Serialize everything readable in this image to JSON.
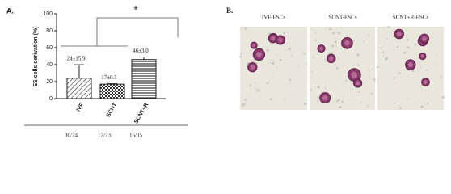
{
  "chart_data": {
    "type": "bar",
    "panel_label": "A.",
    "ylabel": "ES cells derivation (%)",
    "categories": [
      "IVF",
      "SCNT",
      "SCNT+R"
    ],
    "values": [
      24,
      17,
      46
    ],
    "errors": [
      15.9,
      0.5,
      3.0
    ],
    "value_labels": [
      "24±15.9",
      "17±0.5",
      "46±3.0"
    ],
    "sample_counts": [
      "30/74",
      "12/73",
      "16/35"
    ],
    "significance": "*",
    "ylim": [
      0,
      100
    ],
    "yticks": [
      0,
      20,
      40,
      60,
      80,
      100
    ],
    "color": "#222222"
  },
  "panel_b": {
    "label": "B.",
    "images": [
      "IVF-ESCs",
      "SCNT-ESCs",
      "SCNT+R-ESCs"
    ]
  }
}
